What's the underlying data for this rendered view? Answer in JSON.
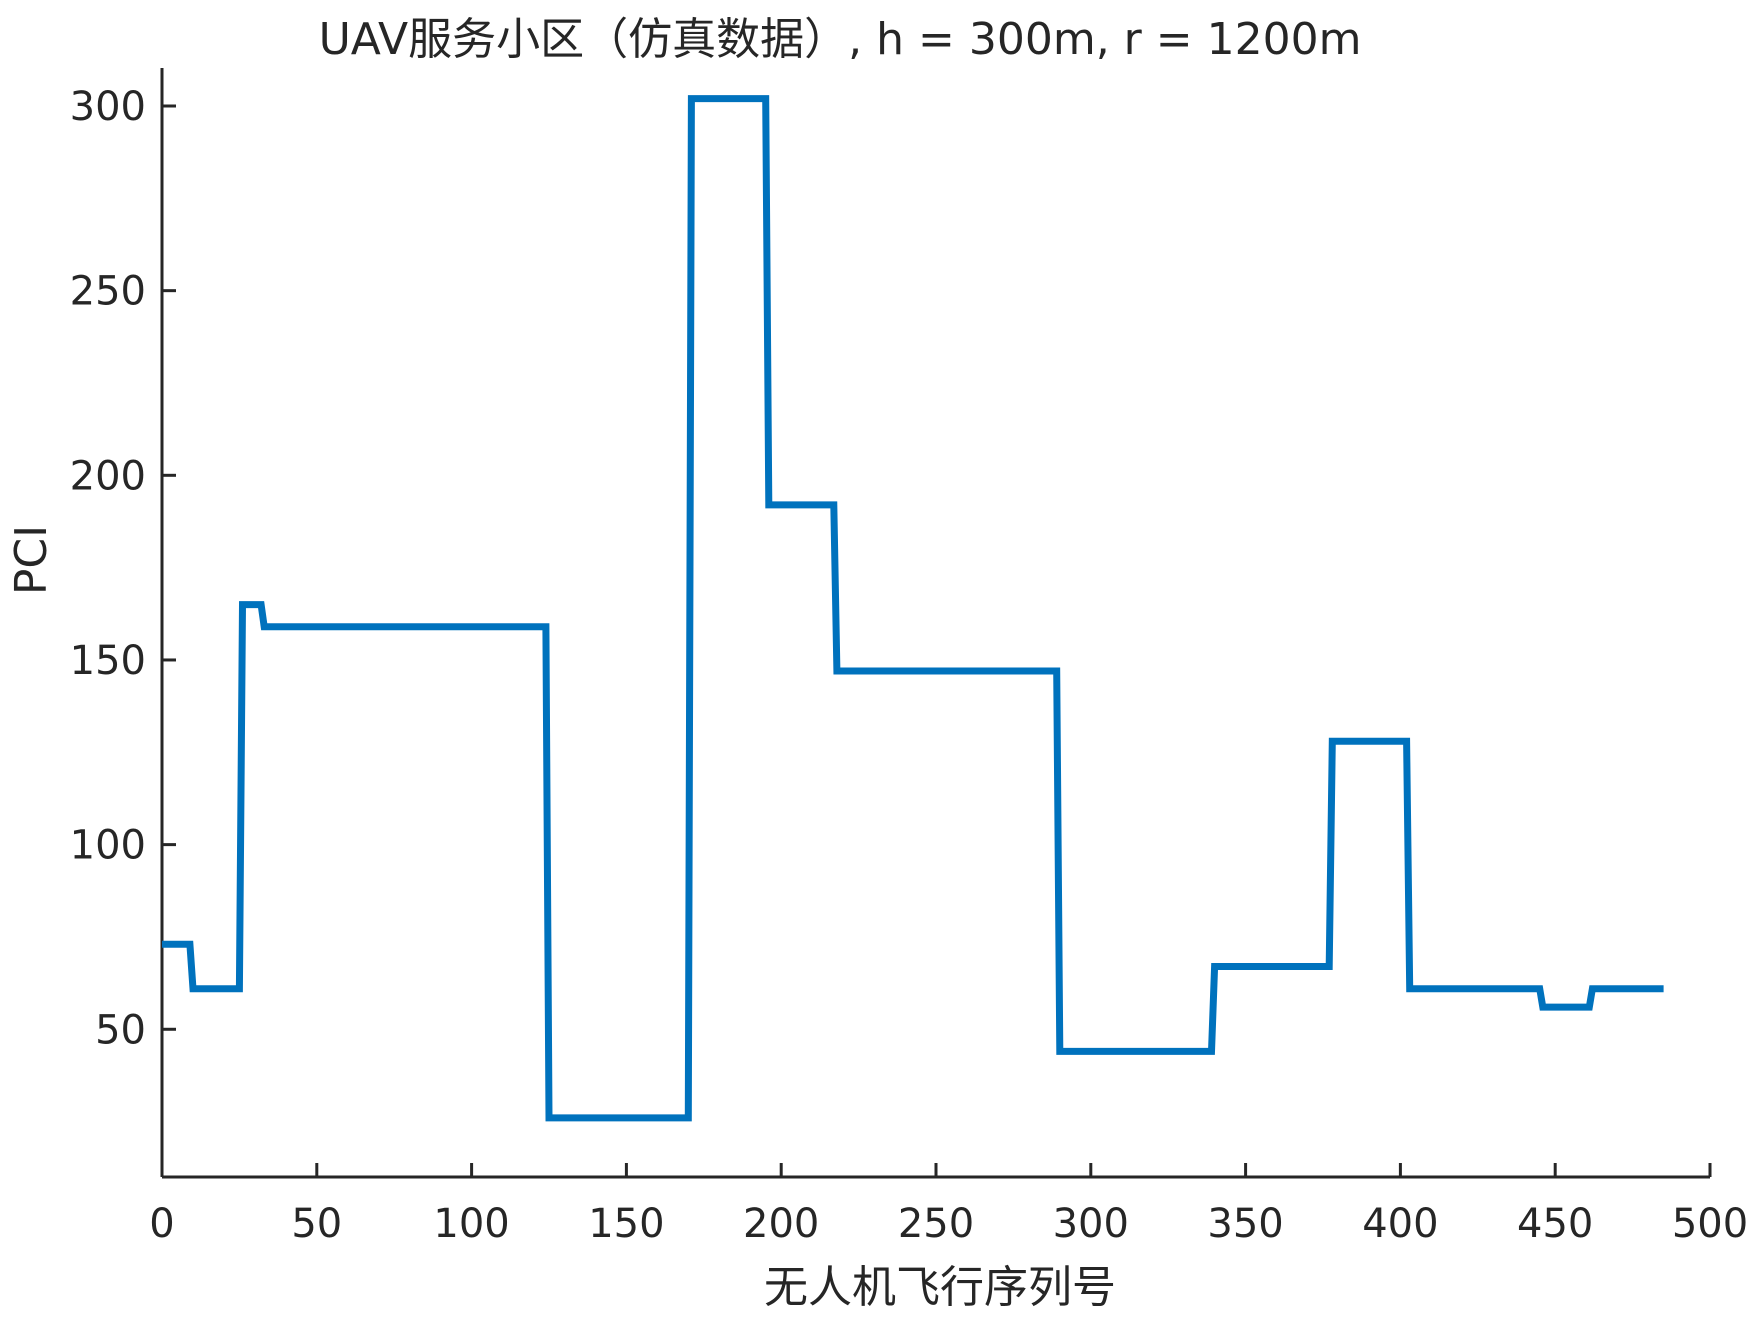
{
  "chart_data": {
    "type": "line",
    "title": "UAV服务小区（仿真数据）, h = 300m, r = 1200m",
    "xlabel": "无人机飞行序列号",
    "ylabel": "PCI",
    "xlim": [
      0,
      500
    ],
    "ylim": [
      10,
      310
    ],
    "xticks": [
      0,
      50,
      100,
      150,
      200,
      250,
      300,
      350,
      400,
      450,
      500
    ],
    "yticks": [
      50,
      100,
      150,
      200,
      250,
      300
    ],
    "grid": false,
    "series": [
      {
        "color": "#0072BD",
        "x": [
          0,
          9,
          10,
          25,
          26,
          32,
          33,
          124,
          125,
          170,
          171,
          195,
          196,
          217,
          218,
          289,
          290,
          339,
          340,
          377,
          378,
          402,
          403,
          445,
          446,
          461,
          462,
          485
        ],
        "y": [
          73,
          73,
          61,
          61,
          165,
          165,
          159,
          159,
          26,
          26,
          302,
          302,
          192,
          192,
          147,
          147,
          44,
          44,
          67,
          67,
          128,
          128,
          61,
          61,
          56,
          56,
          61,
          61
        ]
      }
    ]
  }
}
